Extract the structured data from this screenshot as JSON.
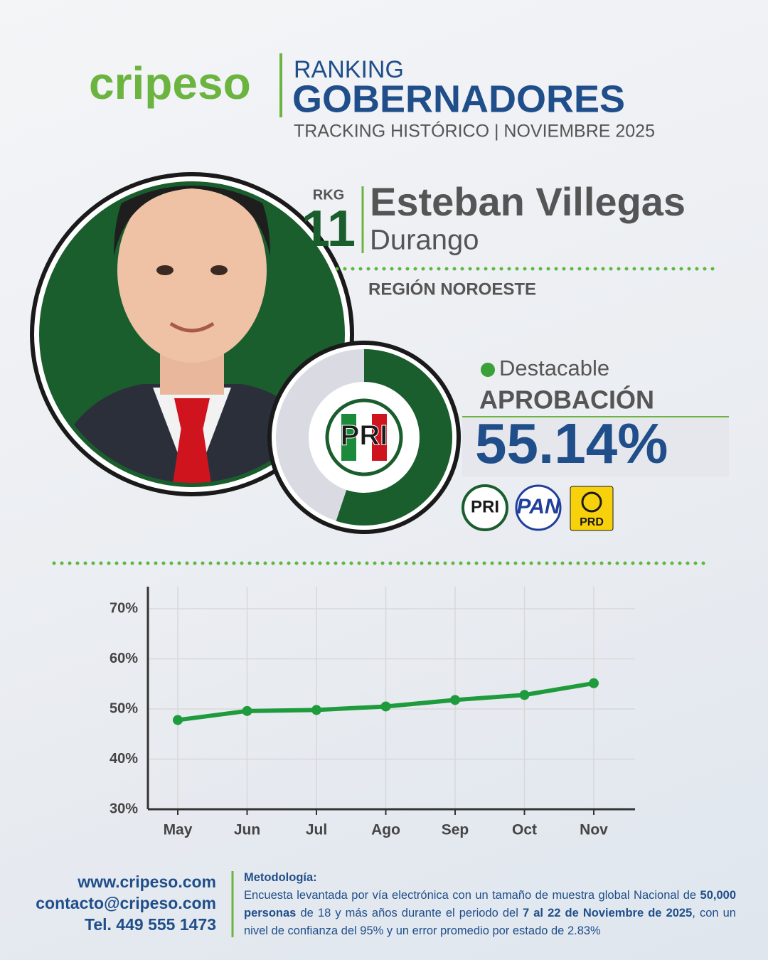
{
  "header": {
    "brand": "cripeso",
    "line1": "RANKING",
    "line2": "GOBERNADORES",
    "line3": "TRACKING HISTÓRICO | NOVIEMBRE 2025"
  },
  "profile": {
    "rank_label": "RKG",
    "rank": "11",
    "name": "Esteban Villegas",
    "state": "Durango",
    "region": "REGIÓN NOROESTE",
    "status": "Destacable",
    "metric_label": "APROBACIÓN",
    "approval": 55.14,
    "approval_label": "55.14%",
    "party": "PRI",
    "coalition": [
      "PRI",
      "PAN",
      "PRD"
    ]
  },
  "chart_data": {
    "type": "line",
    "categories": [
      "May",
      "Jun",
      "Jul",
      "Ago",
      "Sep",
      "Oct",
      "Nov"
    ],
    "values": [
      47.8,
      49.6,
      49.8,
      50.5,
      51.8,
      52.8,
      55.14
    ],
    "color": "#1e9b3c",
    "ylim": [
      30,
      74.4
    ],
    "yticks": [
      {
        "value": 30,
        "label": "30%"
      },
      {
        "value": 40,
        "label": "40%"
      },
      {
        "value": 50,
        "label": "50%"
      },
      {
        "value": 60,
        "label": "60%"
      },
      {
        "value": 70,
        "label": "70%"
      }
    ],
    "grid": true
  },
  "footer": {
    "website": "www.cripeso.com",
    "email": "contacto@cripeso.com",
    "phone": "Tel. 449 555 1473",
    "methodology_title": "Metodología:",
    "methodology": [
      {
        "text": "Encuesta levantada por vía electrónica con un tamaño de muestra global Nacional de ",
        "bold": false
      },
      {
        "text": "50,000 personas",
        "bold": true
      },
      {
        "text": " de 18 y más años durante el periodo del ",
        "bold": false
      },
      {
        "text": "7 al 22 de Noviembre de 2025",
        "bold": true
      },
      {
        "text": ", con un nivel de confianza del 95% y un error promedio por estado de 2.83%",
        "bold": false
      }
    ]
  }
}
